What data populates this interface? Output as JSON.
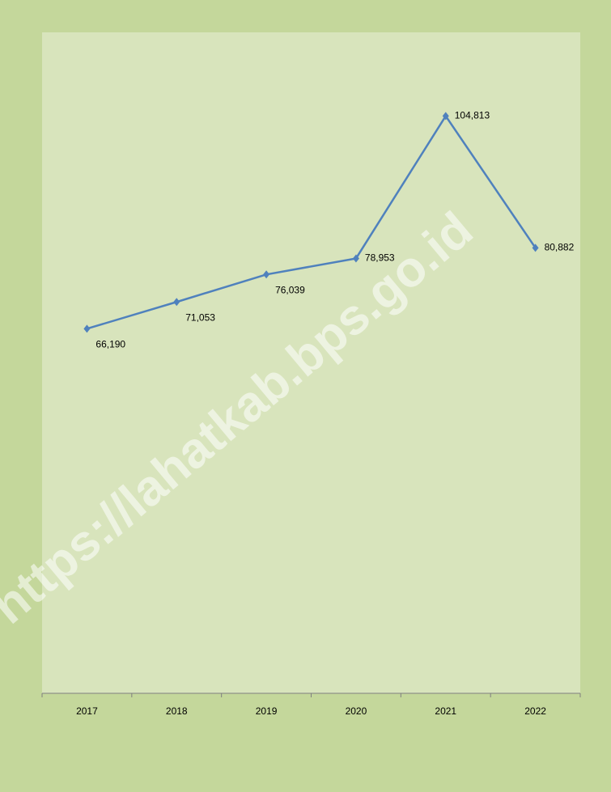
{
  "chart_data": {
    "type": "line",
    "categories": [
      "2017",
      "2018",
      "2019",
      "2020",
      "2021",
      "2022"
    ],
    "series": [
      {
        "color": "#4f81bd",
        "values": [
          66190,
          71053,
          76039,
          78953,
          104813,
          80882
        ],
        "value_labels": [
          "66,190",
          "71,053",
          "76,039",
          "78,953",
          "104,813",
          "80,882"
        ]
      }
    ],
    "ylim": [
      0,
      120000
    ],
    "watermark": "https://lahatkab.bps.go.id"
  }
}
